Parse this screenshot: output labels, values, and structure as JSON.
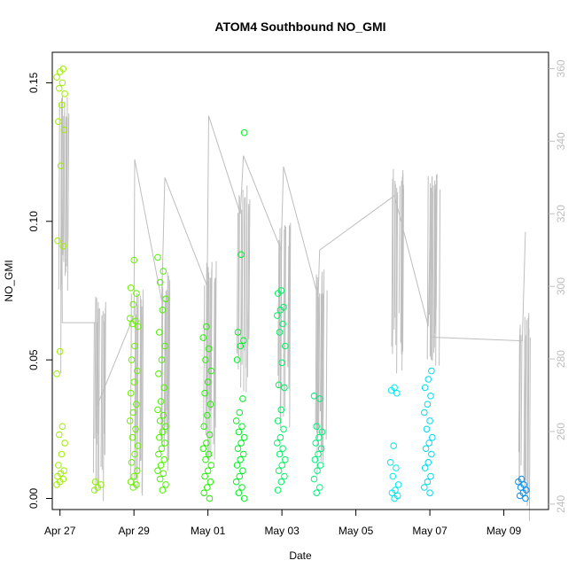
{
  "chart_data": {
    "type": "scatter",
    "title": "ATOM4 Southbound NO_GMI",
    "xlabel": "Date",
    "ylabel": "NO_GMI",
    "x_ticks": [
      "Apr 27",
      "Apr 29",
      "May 01",
      "May 03",
      "May 05",
      "May 07",
      "May 09"
    ],
    "x_range": [
      "2018-04-26T19:00",
      "2018-05-10T05:00"
    ],
    "ylim": [
      -0.004,
      0.161
    ],
    "y_ticks": [
      "0.00",
      "0.05",
      "0.10",
      "0.15"
    ],
    "y2lim": [
      238.5,
      364.5
    ],
    "y2_ticks": [
      "240",
      "260",
      "280",
      "300",
      "320",
      "340",
      "360"
    ],
    "y2_color": "#bebebe",
    "color_scale": "hue varies with time: yellow-green on Apr 27 through green and cyan to blue on May 09",
    "series": [
      {
        "marker": "open-circle",
        "clusters": [
          {
            "x": "2018-04-27T00:30",
            "y": [
              0.005,
              0.006,
              0.007,
              0.008,
              0.009,
              0.01,
              0.012,
              0.016,
              0.02,
              0.023,
              0.026,
              0.045,
              0.053,
              0.091,
              0.093,
              0.12,
              0.133,
              0.136,
              0.142,
              0.146,
              0.148,
              0.15,
              0.152,
              0.154,
              0.155
            ],
            "color": "#9fee00"
          },
          {
            "x": "2018-04-28T00:00",
            "y": [
              0.003,
              0.004,
              0.005,
              0.006
            ],
            "color": "#8df000"
          },
          {
            "x": "2018-04-29T00:00",
            "y": [
              0.004,
              0.005,
              0.006,
              0.008,
              0.01,
              0.013,
              0.016,
              0.019,
              0.022,
              0.025,
              0.028,
              0.031,
              0.034,
              0.038,
              0.042,
              0.046,
              0.05,
              0.055,
              0.062,
              0.063,
              0.064,
              0.065,
              0.07,
              0.074,
              0.076,
              0.086
            ],
            "color": "#6cf000"
          },
          {
            "x": "2018-04-29T18:00",
            "y": [
              0.003,
              0.005,
              0.007,
              0.009,
              0.01,
              0.012,
              0.014,
              0.016,
              0.018,
              0.02,
              0.022,
              0.024,
              0.026,
              0.028,
              0.03,
              0.032,
              0.035,
              0.04,
              0.045,
              0.05,
              0.055,
              0.06,
              0.068,
              0.072,
              0.078,
              0.082,
              0.087
            ],
            "color": "#4df000"
          },
          {
            "x": "2018-04-30T23:30",
            "y": [
              0.0,
              0.002,
              0.004,
              0.006,
              0.008,
              0.01,
              0.012,
              0.014,
              0.016,
              0.018,
              0.02,
              0.023,
              0.026,
              0.03,
              0.034,
              0.038,
              0.042,
              0.046,
              0.05,
              0.054,
              0.058,
              0.062
            ],
            "color": "#22f000"
          },
          {
            "x": "2018-05-01T21:00",
            "y": [
              0.0,
              0.002,
              0.004,
              0.006,
              0.008,
              0.01,
              0.012,
              0.014,
              0.016,
              0.018,
              0.02,
              0.022,
              0.024,
              0.026,
              0.028,
              0.031,
              0.036,
              0.05,
              0.055,
              0.057,
              0.06,
              0.088,
              0.132
            ],
            "color": "#00f022"
          },
          {
            "x": "2018-05-02T23:30",
            "y": [
              0.003,
              0.006,
              0.008,
              0.01,
              0.012,
              0.014,
              0.016,
              0.018,
              0.02,
              0.022,
              0.025,
              0.028,
              0.032,
              0.04,
              0.041,
              0.049,
              0.055,
              0.06,
              0.063,
              0.066,
              0.068,
              0.069,
              0.074,
              0.075
            ],
            "color": "#00f062"
          },
          {
            "x": "2018-05-03T23:30",
            "y": [
              0.002,
              0.004,
              0.007,
              0.01,
              0.012,
              0.014,
              0.016,
              0.018,
              0.02,
              0.022,
              0.024,
              0.026,
              0.036,
              0.037
            ],
            "color": "#00f07a"
          },
          {
            "x": "2018-05-06T01:00",
            "y": [
              0.0,
              0.001,
              0.002,
              0.003,
              0.005,
              0.008,
              0.011,
              0.013,
              0.019,
              0.038,
              0.039,
              0.04
            ],
            "color": "#00e8f0"
          },
          {
            "x": "2018-05-06T23:00",
            "y": [
              0.002,
              0.004,
              0.006,
              0.008,
              0.011,
              0.013,
              0.016,
              0.018,
              0.02,
              0.022,
              0.025,
              0.028,
              0.031,
              0.034,
              0.037,
              0.04,
              0.043,
              0.046
            ],
            "color": "#00d8f0"
          },
          {
            "x": "2018-05-09T12:00",
            "y": [
              0.0,
              0.001,
              0.002,
              0.003,
              0.004,
              0.005,
              0.006,
              0.007
            ],
            "color": "#0090f0"
          }
        ]
      },
      {
        "name": "right-axis trace",
        "type": "line",
        "axis": "right",
        "color": "#bebebe",
        "anchors": [
          {
            "x": "2018-04-27T00:30",
            "y": 276
          },
          {
            "x": "2018-04-27T01:00",
            "y": 345
          },
          {
            "x": "2018-04-27T01:30",
            "y": 290
          },
          {
            "x": "2018-04-28T00:00",
            "y": 290
          },
          {
            "x": "2018-04-28T00:00",
            "y": 267
          },
          {
            "x": "2018-04-29T00:00",
            "y": 292
          },
          {
            "x": "2018-04-29T00:30",
            "y": 335
          },
          {
            "x": "2018-04-29T18:00",
            "y": 296
          },
          {
            "x": "2018-04-29T20:00",
            "y": 330
          },
          {
            "x": "2018-04-30T23:30",
            "y": 300
          },
          {
            "x": "2018-05-01T00:30",
            "y": 347
          },
          {
            "x": "2018-05-01T21:00",
            "y": 320
          },
          {
            "x": "2018-05-01T23:00",
            "y": 336
          },
          {
            "x": "2018-05-02T23:30",
            "y": 310
          },
          {
            "x": "2018-05-03T01:00",
            "y": 333
          },
          {
            "x": "2018-05-03T23:30",
            "y": 297
          },
          {
            "x": "2018-05-04T00:30",
            "y": 310
          },
          {
            "x": "2018-05-06T01:00",
            "y": 325
          },
          {
            "x": "2018-05-06T23:00",
            "y": 289
          },
          {
            "x": "2018-05-07T00:30",
            "y": 325
          },
          {
            "x": "2018-05-07T01:00",
            "y": 286
          },
          {
            "x": "2018-05-09T12:00",
            "y": 285
          },
          {
            "x": "2018-05-09T14:00",
            "y": 315
          }
        ]
      }
    ]
  }
}
